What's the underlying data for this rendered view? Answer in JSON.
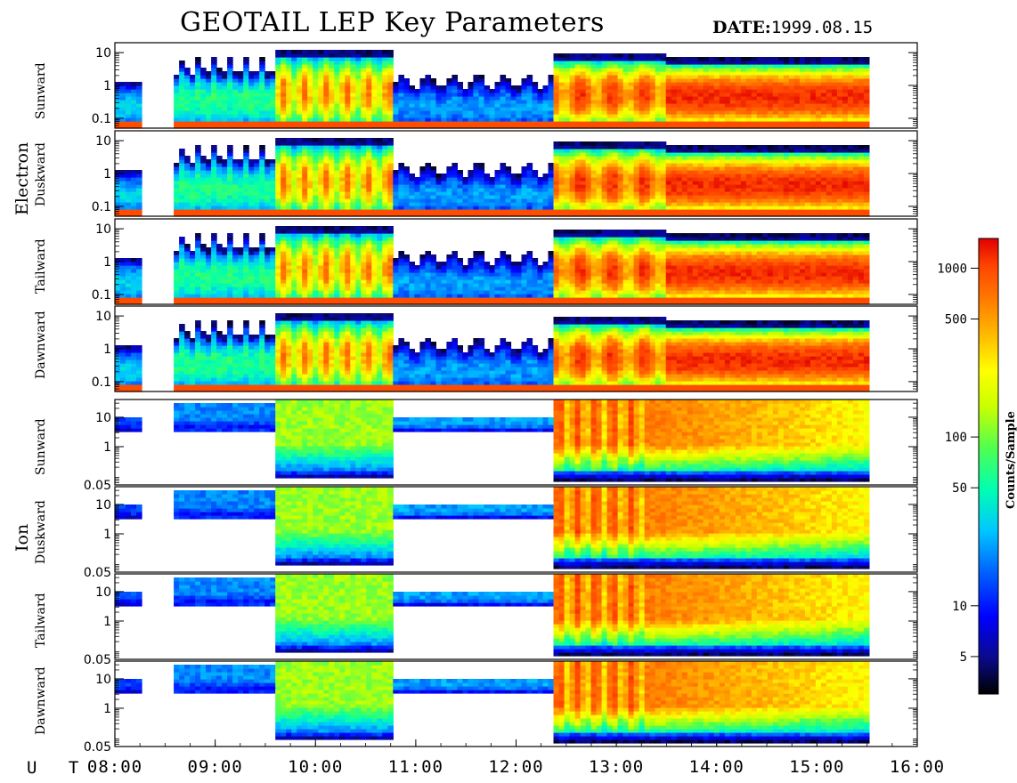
{
  "title": "GEOTAIL LEP Key Parameters",
  "date_label": "DATE:",
  "date_value": "1999.08.15",
  "ut_label": "U T",
  "groups": [
    "Electron",
    "Ion"
  ],
  "colorbar": {
    "label": "Counts/Sample",
    "scale": "log",
    "range": [
      3,
      1500
    ],
    "ticks": [
      {
        "value": 1000,
        "label": "1000"
      },
      {
        "value": 500,
        "label": "500"
      },
      {
        "value": 100,
        "label": "100"
      },
      {
        "value": 50,
        "label": "50"
      },
      {
        "value": 10,
        "label": "10"
      },
      {
        "value": 5,
        "label": "5"
      }
    ],
    "colors": [
      "#000000",
      "#0a0a8c",
      "#0000ff",
      "#0064ff",
      "#00c8ff",
      "#00ffb0",
      "#50ff50",
      "#c8ff00",
      "#ffff00",
      "#ffb000",
      "#ff7000",
      "#ff4400",
      "#e00000"
    ]
  },
  "chart_data": {
    "type": "heatmap",
    "x_axis": {
      "label": "U T",
      "range": [
        "08:00",
        "16:00"
      ],
      "ticks": [
        "08:00",
        "09:00",
        "10:00",
        "11:00",
        "12:00",
        "13:00",
        "14:00",
        "15:00",
        "16:00"
      ],
      "data_end": "15:30"
    },
    "z_label": "Counts/Sample",
    "z_scale": "log",
    "panels": [
      {
        "group": "Electron",
        "name": "Sunward",
        "y_scale": "log",
        "ylim": [
          0.05,
          20
        ],
        "y_ticks": [
          "10",
          "1",
          "0.1"
        ]
      },
      {
        "group": "Electron",
        "name": "Duskward",
        "y_scale": "log",
        "ylim": [
          0.05,
          20
        ],
        "y_ticks": [
          "10",
          "1",
          "0.1"
        ]
      },
      {
        "group": "Electron",
        "name": "Tailward",
        "y_scale": "log",
        "ylim": [
          0.05,
          20
        ],
        "y_ticks": [
          "10",
          "1",
          "0.1"
        ]
      },
      {
        "group": "Electron",
        "name": "Dawnward",
        "y_scale": "log",
        "ylim": [
          0.05,
          20
        ],
        "y_ticks": [
          "10",
          "1",
          "0.1"
        ]
      },
      {
        "group": "Ion",
        "name": "Sunward",
        "y_scale": "log",
        "ylim": [
          0.05,
          40
        ],
        "y_ticks": [
          "10",
          "1",
          "0.05"
        ]
      },
      {
        "group": "Ion",
        "name": "Duskward",
        "y_scale": "log",
        "ylim": [
          0.05,
          40
        ],
        "y_ticks": [
          "10",
          "1",
          "0.05"
        ]
      },
      {
        "group": "Ion",
        "name": "Tailward",
        "y_scale": "log",
        "ylim": [
          0.05,
          40
        ],
        "y_ticks": [
          "10",
          "1",
          "0.05"
        ]
      },
      {
        "group": "Ion",
        "name": "Dawnward",
        "y_scale": "log",
        "ylim": [
          0.05,
          40
        ],
        "y_ticks": [
          "10",
          "1",
          "0.05"
        ]
      }
    ],
    "data_gaps": [
      [
        "08:15",
        "08:35"
      ]
    ]
  }
}
